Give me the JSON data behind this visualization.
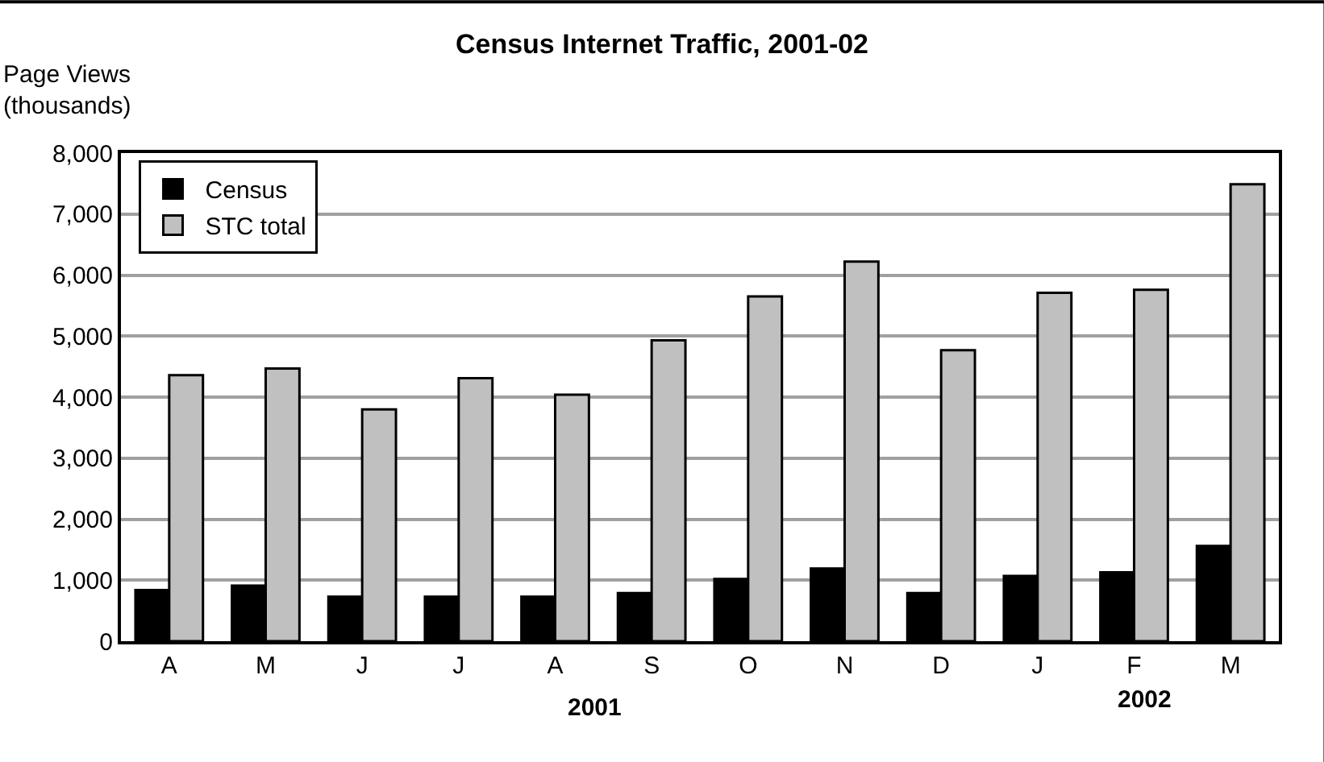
{
  "chart_data": {
    "type": "bar",
    "title": "Census Internet Traffic, 2001-02",
    "ylabel": "Page Views\n(thousands)",
    "categories": [
      "A",
      "M",
      "J",
      "J",
      "A",
      "S",
      "O",
      "N",
      "D",
      "J",
      "F",
      "M"
    ],
    "series": [
      {
        "name": "Census",
        "color": "#000000",
        "values": [
          840,
          910,
          730,
          730,
          730,
          790,
          1020,
          1190,
          790,
          1070,
          1130,
          1560
        ]
      },
      {
        "name": "STC total",
        "color": "#c0c0c0",
        "values": [
          4360,
          4470,
          3800,
          4310,
          4040,
          4930,
          5650,
          6220,
          4770,
          5710,
          5760,
          7490
        ]
      }
    ],
    "ylim": [
      0,
      8000
    ],
    "yticks": [
      0,
      {
        "value": 1000,
        "label": "1,000"
      },
      {
        "value": 2000,
        "label": "2,000"
      },
      {
        "value": 3000,
        "label": "3,000"
      },
      {
        "value": 4000,
        "label": "4,000"
      },
      {
        "value": 5000,
        "label": "5,000"
      },
      {
        "value": 6000,
        "label": "6,000"
      },
      {
        "value": 7000,
        "label": "7,000"
      },
      {
        "value": 8000,
        "label": "8,000"
      }
    ],
    "annotations": [
      "2001",
      "2002"
    ],
    "grid": "y",
    "legend": "top left"
  }
}
